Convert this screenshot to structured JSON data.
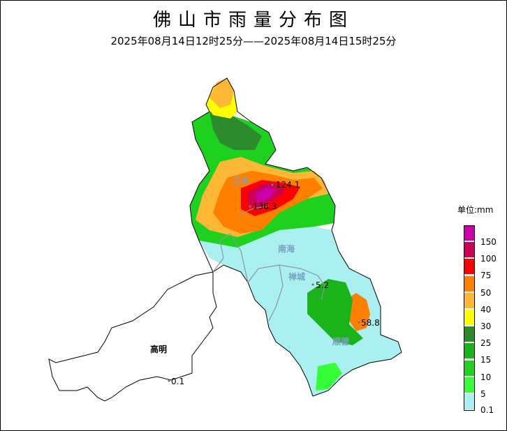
{
  "title": "佛山市雨量分布图",
  "subtitle": "2025年08月14日12时25分——2025年08月14日15时25分",
  "unit": "单位:mm",
  "legend": {
    "levels": [
      {
        "label": "150",
        "color": "#cc00a8"
      },
      {
        "label": "100",
        "color": "#cc0054"
      },
      {
        "label": "75",
        "color": "#ff0000"
      },
      {
        "label": "50",
        "color": "#ff7f00"
      },
      {
        "label": "40",
        "color": "#ffb835"
      },
      {
        "label": "30",
        "color": "#ffff00"
      },
      {
        "label": "25",
        "color": "#2d8a2d"
      },
      {
        "label": "15",
        "color": "#1ab31a"
      },
      {
        "label": "10",
        "color": "#1fd11f"
      },
      {
        "label": "5",
        "color": "#37ff37"
      },
      {
        "label": "0.1",
        "color": "#aaf0f0"
      }
    ]
  },
  "districts": {
    "sanshui": "三水",
    "nanhai": "南海",
    "chancheng": "禅城",
    "shunde": "顺德",
    "gaoming": "高明"
  },
  "stations": [
    {
      "value": "124.1"
    },
    {
      "value": "136.3"
    },
    {
      "value": "5.2"
    },
    {
      "value": "58.8"
    },
    {
      "value": "0.1"
    }
  ]
}
